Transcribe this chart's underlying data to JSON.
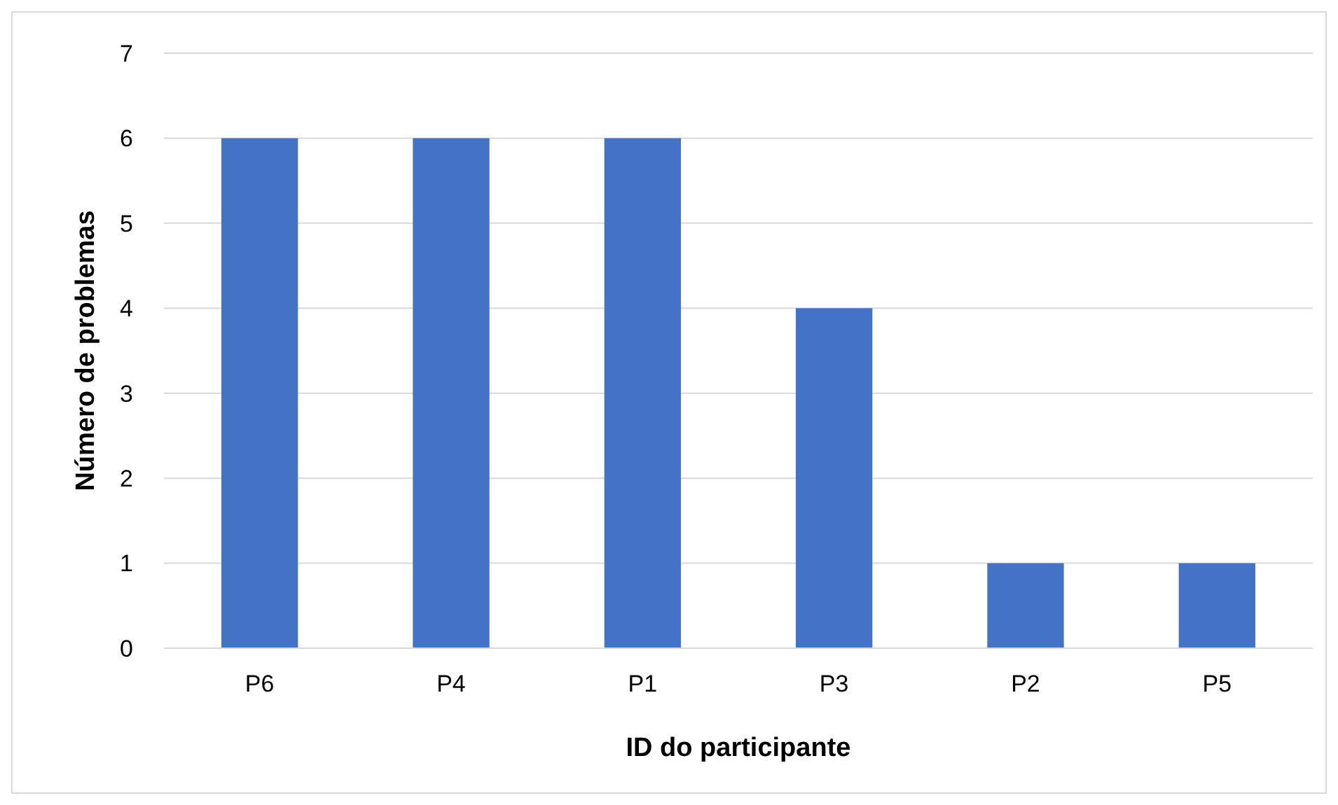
{
  "chart_data": {
    "type": "bar",
    "xlabel": "ID do participante",
    "ylabel": "Número de problemas",
    "categories": [
      "P6",
      "P4",
      "P1",
      "P3",
      "P2",
      "P5"
    ],
    "values": [
      6,
      6,
      6,
      4,
      1,
      1
    ],
    "color": "#4472c4",
    "ylim": [
      0,
      7
    ],
    "yticks": [
      0,
      1,
      2,
      3,
      4,
      5,
      6,
      7
    ],
    "grid": "y"
  }
}
